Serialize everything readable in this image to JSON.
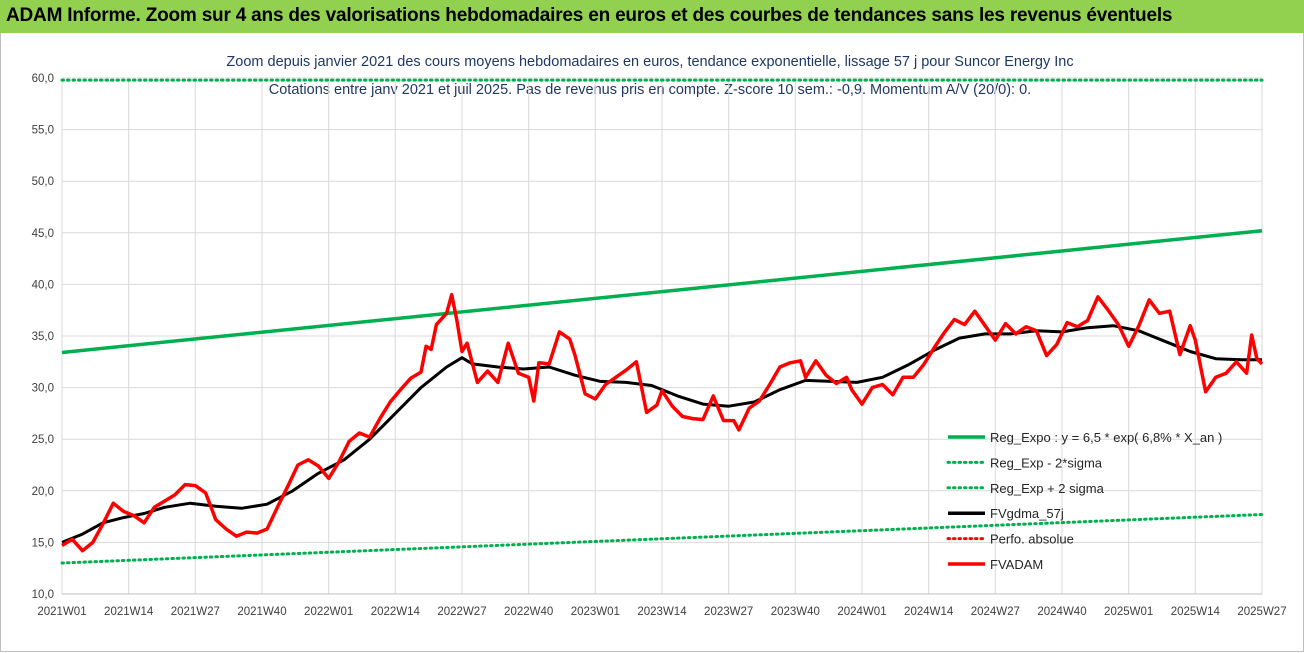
{
  "header": {
    "title": "ADAM Informe. Zoom sur 4 ans des valorisations hebdomadaires en euros et des courbes de tendances sans les revenus éventuels"
  },
  "chart_data": {
    "type": "line",
    "title_line1": "Zoom depuis janvier 2021 des cours moyens hebdomadaires en euros, tendance exponentielle, lissage 57 j pour Suncor Energy Inc",
    "title_line2": "Cotations entre janv 2021 et juil 2025. Pas de revenus pris en compte. Z-score 10 sem.: -0,9. Momentum A/V (20/0): 0.",
    "ylim": [
      10,
      60
    ],
    "y_ticks": [
      "10,0",
      "15,0",
      "20,0",
      "25,0",
      "30,0",
      "35,0",
      "40,0",
      "45,0",
      "50,0",
      "55,0",
      "60,0"
    ],
    "x_count": 235,
    "x_ticks": [
      {
        "i": 0,
        "label": "2021W01"
      },
      {
        "i": 13,
        "label": "2021W14"
      },
      {
        "i": 26,
        "label": "2021W27"
      },
      {
        "i": 39,
        "label": "2021W40"
      },
      {
        "i": 52,
        "label": "2022W01"
      },
      {
        "i": 65,
        "label": "2022W14"
      },
      {
        "i": 78,
        "label": "2022W27"
      },
      {
        "i": 91,
        "label": "2022W40"
      },
      {
        "i": 104,
        "label": "2023W01"
      },
      {
        "i": 117,
        "label": "2023W14"
      },
      {
        "i": 130,
        "label": "2023W27"
      },
      {
        "i": 143,
        "label": "2023W40"
      },
      {
        "i": 156,
        "label": "2024W01"
      },
      {
        "i": 169,
        "label": "2024W14"
      },
      {
        "i": 182,
        "label": "2024W27"
      },
      {
        "i": 195,
        "label": "2024W40"
      },
      {
        "i": 208,
        "label": "2025W01"
      },
      {
        "i": 221,
        "label": "2025W14"
      },
      {
        "i": 234,
        "label": "2025W27"
      }
    ],
    "series": [
      {
        "name": "Reg_Expo : y = 6,5 * exp( 6,8% *  X_an )",
        "color": "#00b050",
        "style": "solid",
        "values": [
          [
            0,
            33.4
          ],
          [
            234,
            45.2
          ]
        ]
      },
      {
        "name": "Reg_Exp - 2*sigma",
        "color": "#00b050",
        "style": "dotted",
        "values": [
          [
            0,
            13.0
          ],
          [
            234,
            17.7
          ]
        ]
      },
      {
        "name": "Reg_Exp + 2 sigma",
        "color": "#00b050",
        "style": "dotted",
        "values": [
          [
            0,
            59.8
          ],
          [
            234,
            59.8
          ]
        ]
      },
      {
        "name": "FVgdma_57j",
        "color": "#000000",
        "style": "solid",
        "values": [
          [
            0,
            15.0
          ],
          [
            4,
            15.8
          ],
          [
            8,
            16.9
          ],
          [
            12,
            17.4
          ],
          [
            16,
            17.8
          ],
          [
            20,
            18.4
          ],
          [
            25,
            18.8
          ],
          [
            30,
            18.5
          ],
          [
            35,
            18.3
          ],
          [
            40,
            18.7
          ],
          [
            45,
            20.0
          ],
          [
            50,
            21.7
          ],
          [
            55,
            23.0
          ],
          [
            60,
            25.0
          ],
          [
            65,
            27.5
          ],
          [
            70,
            30.0
          ],
          [
            75,
            32.0
          ],
          [
            78,
            32.9
          ],
          [
            80,
            32.3
          ],
          [
            85,
            32.0
          ],
          [
            90,
            31.8
          ],
          [
            95,
            32.0
          ],
          [
            100,
            31.2
          ],
          [
            105,
            30.6
          ],
          [
            110,
            30.5
          ],
          [
            115,
            30.2
          ],
          [
            120,
            29.2
          ],
          [
            125,
            28.4
          ],
          [
            130,
            28.2
          ],
          [
            135,
            28.6
          ],
          [
            140,
            29.8
          ],
          [
            145,
            30.7
          ],
          [
            150,
            30.6
          ],
          [
            155,
            30.5
          ],
          [
            160,
            31.0
          ],
          [
            165,
            32.2
          ],
          [
            170,
            33.6
          ],
          [
            175,
            34.8
          ],
          [
            180,
            35.2
          ],
          [
            185,
            35.2
          ],
          [
            190,
            35.5
          ],
          [
            195,
            35.4
          ],
          [
            200,
            35.8
          ],
          [
            205,
            36.0
          ],
          [
            210,
            35.5
          ],
          [
            215,
            34.5
          ],
          [
            220,
            33.5
          ],
          [
            225,
            32.8
          ],
          [
            230,
            32.7
          ],
          [
            234,
            32.7
          ]
        ]
      },
      {
        "name": "Perfo. absolue",
        "color": "#ff0000",
        "style": "dotted",
        "values": []
      },
      {
        "name": "FVADAM",
        "color": "#ff0000",
        "style": "solid",
        "values": [
          [
            0,
            14.7
          ],
          [
            2,
            15.3
          ],
          [
            4,
            14.2
          ],
          [
            6,
            15.0
          ],
          [
            8,
            16.8
          ],
          [
            10,
            18.8
          ],
          [
            12,
            18.0
          ],
          [
            14,
            17.6
          ],
          [
            16,
            16.9
          ],
          [
            18,
            18.4
          ],
          [
            20,
            19.0
          ],
          [
            22,
            19.6
          ],
          [
            24,
            20.6
          ],
          [
            26,
            20.5
          ],
          [
            28,
            19.8
          ],
          [
            30,
            17.2
          ],
          [
            32,
            16.3
          ],
          [
            34,
            15.6
          ],
          [
            36,
            16.0
          ],
          [
            38,
            15.9
          ],
          [
            40,
            16.3
          ],
          [
            42,
            18.4
          ],
          [
            44,
            20.4
          ],
          [
            46,
            22.5
          ],
          [
            48,
            23.0
          ],
          [
            50,
            22.4
          ],
          [
            52,
            21.2
          ],
          [
            54,
            22.8
          ],
          [
            56,
            24.8
          ],
          [
            58,
            25.6
          ],
          [
            60,
            25.2
          ],
          [
            62,
            27.0
          ],
          [
            64,
            28.6
          ],
          [
            66,
            29.8
          ],
          [
            68,
            30.9
          ],
          [
            70,
            31.5
          ],
          [
            71,
            34.0
          ],
          [
            72,
            33.7
          ],
          [
            73,
            36.1
          ],
          [
            75,
            37.2
          ],
          [
            76,
            39.0
          ],
          [
            77,
            36.5
          ],
          [
            78,
            33.5
          ],
          [
            79,
            34.3
          ],
          [
            81,
            30.5
          ],
          [
            83,
            31.6
          ],
          [
            85,
            30.5
          ],
          [
            87,
            34.3
          ],
          [
            89,
            31.4
          ],
          [
            91,
            31.0
          ],
          [
            92,
            28.7
          ],
          [
            93,
            32.4
          ],
          [
            95,
            32.3
          ],
          [
            97,
            35.4
          ],
          [
            99,
            34.7
          ],
          [
            100,
            33.2
          ],
          [
            102,
            29.4
          ],
          [
            104,
            28.9
          ],
          [
            106,
            30.3
          ],
          [
            108,
            31.0
          ],
          [
            110,
            31.7
          ],
          [
            112,
            32.5
          ],
          [
            114,
            27.6
          ],
          [
            116,
            28.3
          ],
          [
            117,
            29.7
          ],
          [
            119,
            28.2
          ],
          [
            121,
            27.2
          ],
          [
            123,
            27.0
          ],
          [
            125,
            26.9
          ],
          [
            127,
            29.2
          ],
          [
            129,
            26.8
          ],
          [
            131,
            26.8
          ],
          [
            132,
            25.9
          ],
          [
            134,
            28.0
          ],
          [
            136,
            28.7
          ],
          [
            138,
            30.3
          ],
          [
            140,
            32.0
          ],
          [
            142,
            32.4
          ],
          [
            144,
            32.6
          ],
          [
            145,
            31.0
          ],
          [
            147,
            32.6
          ],
          [
            149,
            31.2
          ],
          [
            151,
            30.4
          ],
          [
            153,
            31.0
          ],
          [
            154,
            29.8
          ],
          [
            156,
            28.4
          ],
          [
            158,
            30.0
          ],
          [
            160,
            30.3
          ],
          [
            162,
            29.3
          ],
          [
            164,
            31.0
          ],
          [
            166,
            31.0
          ],
          [
            168,
            32.2
          ],
          [
            170,
            33.8
          ],
          [
            172,
            35.3
          ],
          [
            174,
            36.6
          ],
          [
            176,
            36.1
          ],
          [
            178,
            37.4
          ],
          [
            180,
            36.0
          ],
          [
            182,
            34.6
          ],
          [
            184,
            36.2
          ],
          [
            186,
            35.2
          ],
          [
            188,
            35.9
          ],
          [
            190,
            35.5
          ],
          [
            192,
            33.1
          ],
          [
            194,
            34.2
          ],
          [
            196,
            36.3
          ],
          [
            198,
            35.9
          ],
          [
            200,
            36.5
          ],
          [
            202,
            38.8
          ],
          [
            204,
            37.5
          ],
          [
            206,
            36.1
          ],
          [
            208,
            34.0
          ],
          [
            210,
            36.0
          ],
          [
            212,
            38.5
          ],
          [
            214,
            37.2
          ],
          [
            216,
            37.4
          ],
          [
            218,
            33.2
          ],
          [
            220,
            36.0
          ],
          [
            221,
            34.6
          ],
          [
            223,
            29.6
          ],
          [
            225,
            31.0
          ],
          [
            227,
            31.4
          ],
          [
            229,
            32.5
          ],
          [
            231,
            31.4
          ],
          [
            232,
            35.1
          ],
          [
            233,
            32.8
          ],
          [
            234,
            32.3
          ]
        ]
      }
    ]
  }
}
